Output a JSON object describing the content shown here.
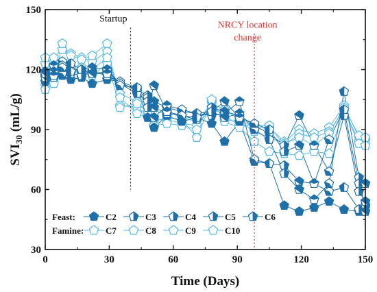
{
  "chart_data": {
    "type": "line",
    "xlabel": "Time (Days)",
    "ylabel": "SVI",
    "ylabel_sub": "30",
    "ylabel_unit": " (mL/g)",
    "xlim": [
      0,
      150
    ],
    "ylim": [
      30,
      150
    ],
    "xticks": [
      0,
      30,
      60,
      90,
      120,
      150
    ],
    "yticks": [
      30,
      60,
      90,
      120,
      150
    ],
    "grid": false,
    "colors": {
      "feast": "#1f6fa8",
      "famine": "#5bbbe8",
      "startup_line": "#222222",
      "nrcy_line": "#e03030",
      "nrcy_text": "#e03030"
    },
    "annotations": [
      {
        "id": "startup",
        "text": "Startup",
        "x": 40
      },
      {
        "id": "nrcy",
        "text": "NRCY location",
        "text2": "change",
        "x": 98
      }
    ],
    "x": [
      0,
      4,
      8,
      12,
      17,
      22,
      29,
      35,
      43,
      48,
      51,
      57,
      64,
      71,
      78,
      84,
      91,
      98,
      105,
      112,
      119,
      126,
      133,
      140,
      147,
      150
    ],
    "legend": {
      "feast_label": "Feast:",
      "famine_label": "Famine:",
      "position": "bottom-left"
    },
    "series": [
      {
        "name": "C2",
        "group": "feast",
        "marker": "pentagon-filled",
        "values": [
          114,
          118,
          117,
          115,
          116,
          113,
          115,
          114,
          111,
          96,
          91,
          97,
          94,
          96,
          93,
          84,
          94,
          74,
          73,
          52,
          49,
          51,
          54,
          50,
          49,
          51
        ]
      },
      {
        "name": "C3",
        "group": "feast",
        "marker": "pentagon-half",
        "values": [
          119,
          122,
          124,
          121,
          119,
          118,
          119,
          113,
          110,
          107,
          104,
          101,
          99,
          98,
          97,
          98,
          104,
          75,
          73,
          72,
          64,
          63,
          59,
          61,
          50,
          52
        ]
      },
      {
        "name": "C4",
        "group": "feast",
        "marker": "pentagon-half",
        "values": [
          117,
          116,
          118,
          118,
          117,
          119,
          117,
          114,
          109,
          106,
          101,
          98,
          97,
          95,
          101,
          99,
          97,
          92,
          88,
          82,
          97,
          82,
          69,
          97,
          59,
          54
        ]
      },
      {
        "name": "C5",
        "group": "feast",
        "marker": "pentagon-half",
        "values": [
          116,
          119,
          122,
          123,
          120,
          121,
          120,
          113,
          108,
          104,
          96,
          102,
          100,
          98,
          99,
          96,
          98,
          90,
          85,
          68,
          60,
          55,
          63,
          109,
          66,
          49
        ]
      },
      {
        "name": "C6",
        "group": "feast",
        "marker": "pentagon-half",
        "values": [
          118,
          117,
          121,
          119,
          120,
          118,
          118,
          112,
          111,
          101,
          112,
          99,
          97,
          96,
          99,
          104,
          96,
          93,
          90,
          79,
          82,
          63,
          85,
          100,
          63,
          63
        ]
      },
      {
        "name": "C7",
        "group": "famine",
        "marker": "pentagon-open",
        "values": [
          123,
          126,
          130,
          128,
          126,
          124,
          129,
          108,
          104,
          101,
          98,
          99,
          96,
          94,
          103,
          100,
          95,
          91,
          91,
          84,
          90,
          88,
          91,
          102,
          86,
          85
        ]
      },
      {
        "name": "C8",
        "group": "famine",
        "marker": "pentagon-open",
        "values": [
          112,
          115,
          122,
          120,
          118,
          117,
          123,
          102,
          101,
          97,
          95,
          95,
          93,
          92,
          101,
          97,
          92,
          92,
          92,
          82,
          88,
          86,
          89,
          100,
          84,
          84
        ]
      },
      {
        "name": "C9",
        "group": "famine",
        "marker": "pentagon-open",
        "values": [
          110,
          113,
          133,
          127,
          125,
          127,
          133,
          101,
          103,
          99,
          94,
          96,
          95,
          86,
          104,
          95,
          94,
          89,
          86,
          83,
          86,
          82,
          88,
          101,
          87,
          86
        ]
      },
      {
        "name": "C10",
        "group": "famine",
        "marker": "pentagon-open",
        "values": [
          126,
          116,
          120,
          119,
          121,
          120,
          126,
          106,
          98,
          96,
          92,
          93,
          92,
          90,
          105,
          94,
          91,
          84,
          79,
          78,
          77,
          79,
          78,
          99,
          83,
          82
        ]
      }
    ]
  }
}
